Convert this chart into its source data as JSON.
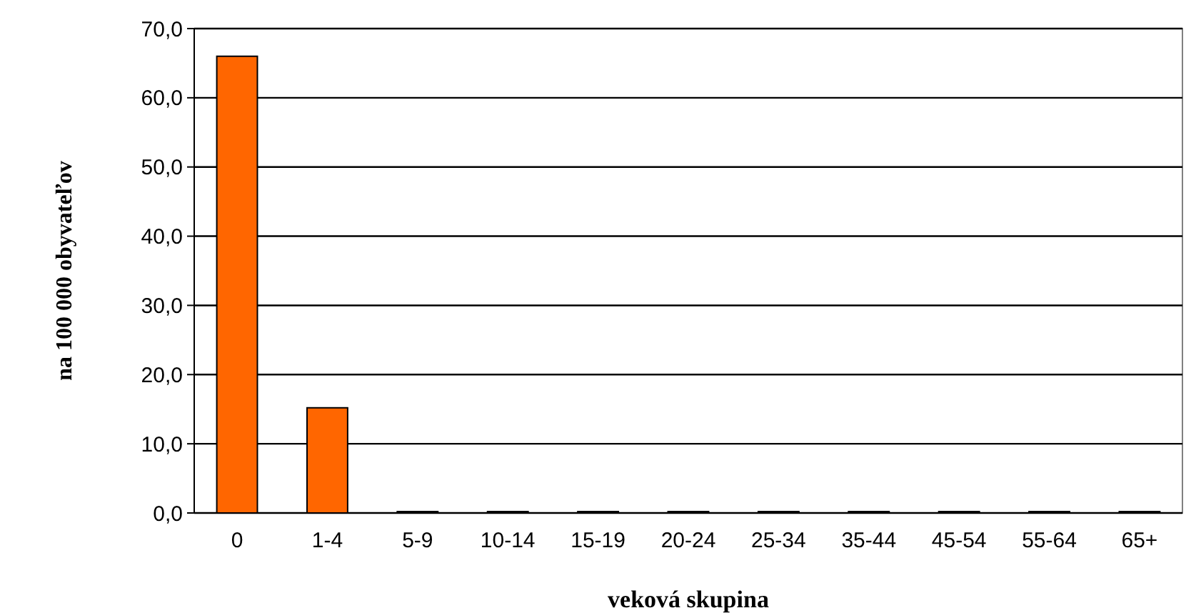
{
  "chart_data": {
    "type": "bar",
    "xlabel": "veková skupina",
    "ylabel": "na 100 000 obyvateľov",
    "categories": [
      "0",
      "1-4",
      "5-9",
      "10-14",
      "15-19",
      "20-24",
      "25-34",
      "35-44",
      "45-54",
      "55-64",
      "65+"
    ],
    "values": [
      66.0,
      15.2,
      0,
      0,
      0,
      0,
      0,
      0,
      0,
      0,
      0
    ],
    "color": "#ff6600",
    "ylim": [
      0,
      70
    ],
    "yticks": [
      {
        "value": 0,
        "label": "0,0"
      },
      {
        "value": 10,
        "label": "10,0"
      },
      {
        "value": 20,
        "label": "20,0"
      },
      {
        "value": 30,
        "label": "30,0"
      },
      {
        "value": 40,
        "label": "40,0"
      },
      {
        "value": 50,
        "label": "50,0"
      },
      {
        "value": 60,
        "label": "60,0"
      },
      {
        "value": 70,
        "label": "70,0"
      }
    ],
    "grid": "y"
  }
}
